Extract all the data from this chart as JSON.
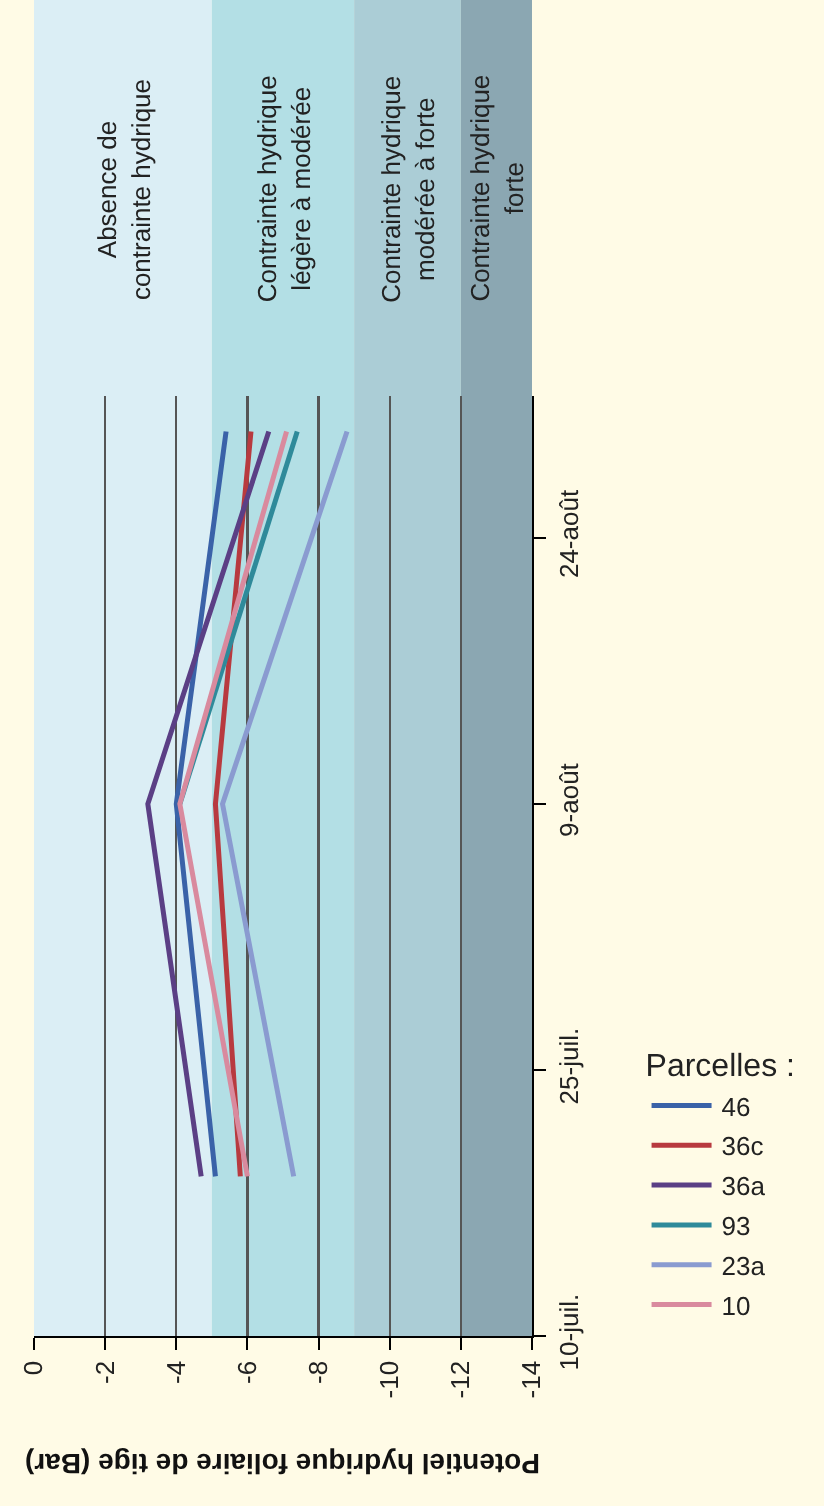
{
  "chart_data": {
    "type": "line",
    "orientation": "horizontal",
    "xlabel": "Potentiel hydrique foliaire de tige (Bar)",
    "legend_title": "Parcelles :",
    "x": [
      "--07-19",
      "--08-09",
      "--08-30"
    ],
    "ylim": [
      "--07-10",
      "--09-01"
    ],
    "yticks": [
      {
        "value": "--07-10",
        "label": "10-juil."
      },
      {
        "value": "--07-25",
        "label": "25-juil."
      },
      {
        "value": "--08-09",
        "label": "9-août"
      },
      {
        "value": "--08-24",
        "label": "24-août"
      }
    ],
    "xlim": [
      0,
      -14
    ],
    "xticks": [
      0,
      -2,
      -4,
      -6,
      -8,
      -10,
      -12,
      -14
    ],
    "series": [
      {
        "name": "46",
        "color": "#3a62a8",
        "values": [
          -5.1,
          -4.0,
          -5.4
        ]
      },
      {
        "name": "36c",
        "color": "#b83a3f",
        "values": [
          -5.8,
          -5.1,
          -6.1
        ]
      },
      {
        "name": "36a",
        "color": "#5b3f85",
        "values": [
          -4.7,
          -3.2,
          -6.6
        ]
      },
      {
        "name": "93",
        "color": "#2f8a9a",
        "values": [
          null,
          -4.1,
          -7.4
        ]
      },
      {
        "name": "23a",
        "color": "#8a9bd0",
        "values": [
          -7.3,
          -5.3,
          -8.8
        ]
      },
      {
        "name": "10",
        "color": "#d98a9e",
        "values": [
          -6.0,
          -4.1,
          -7.1
        ]
      }
    ],
    "bands": [
      {
        "axis": "x",
        "from": 0,
        "to": -5,
        "label": "Absence de\ncontrainte hydrique",
        "color": "#dbeef5"
      },
      {
        "axis": "x",
        "from": -5,
        "to": -9,
        "label": "Contrainte hydrique\nlégère à modérée",
        "color": "#b3dfe5"
      },
      {
        "axis": "x",
        "from": -9,
        "to": -12,
        "label": "Contrainte hydrique\nmodérée à forte",
        "color": "#abcdd6"
      },
      {
        "axis": "x",
        "from": -12,
        "to": -14,
        "label": "Contrainte hydrique\nforte",
        "color": "#8ba7b2"
      }
    ],
    "grid": "x",
    "legend": "right",
    "marker": "none",
    "line_style": "solid"
  }
}
